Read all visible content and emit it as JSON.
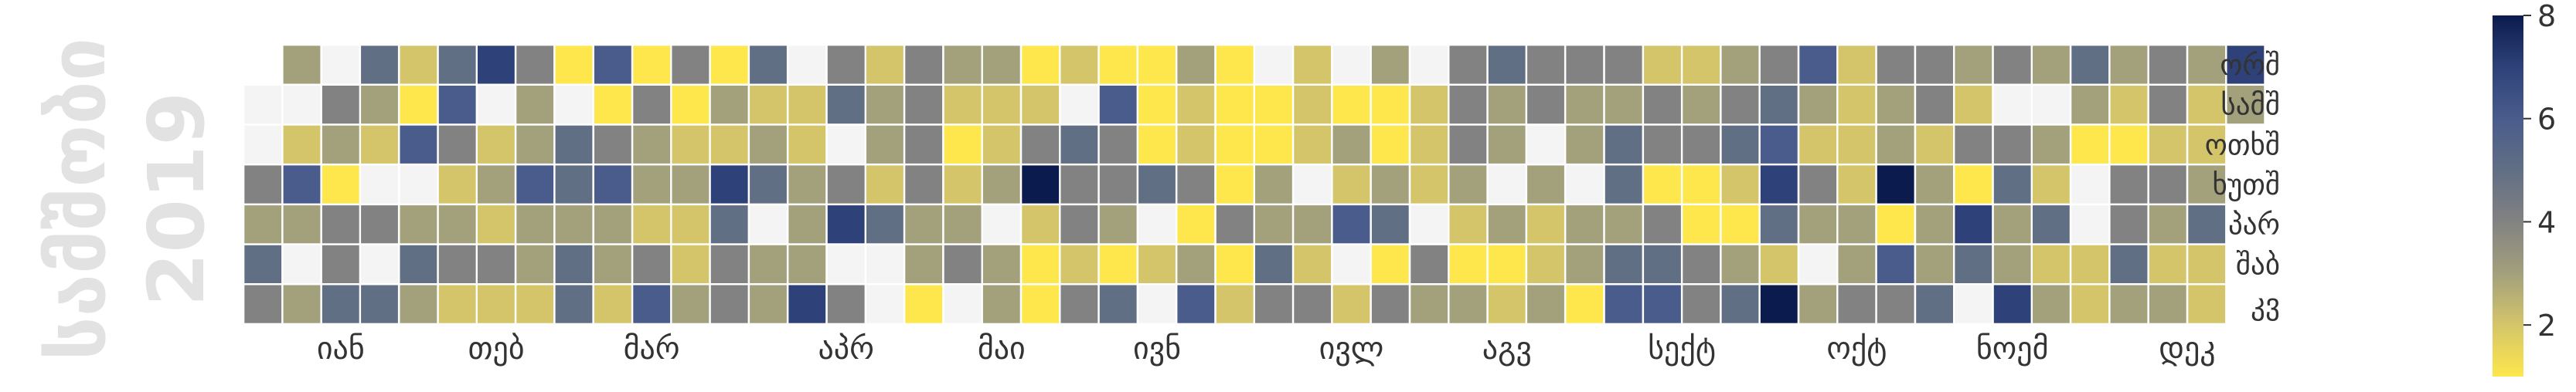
{
  "chart_data": {
    "type": "heatmap",
    "title": "",
    "side_label": "სამშობი",
    "year": "2019",
    "months": [
      "იან",
      "თებ",
      "მარ",
      "აპრ",
      "მაი",
      "ივნ",
      "ივლ",
      "აგვ",
      "სექტ",
      "ოქტ",
      "ნოემ",
      "დეკ"
    ],
    "weekdays": [
      "ორშ",
      "სამშ",
      "ოთხშ",
      "ხუთშ",
      "პარ",
      "შაბ",
      "კვ"
    ],
    "colorbar": {
      "min": 1,
      "max": 8,
      "ticks": [
        2,
        4,
        6,
        8
      ]
    },
    "colormap": [
      "#fde74c",
      "#d4c56a",
      "#a3a07c",
      "#828282",
      "#616f84",
      "#4a5c8c",
      "#2e4279",
      "#0c1b4d"
    ],
    "missing_color": "#f4f4f4",
    "grid_start_weekday": 1,
    "values": [
      null,
      3,
      4,
      3,
      5,
      4,
      3,
      5,
      2,
      6,
      3,
      3,
      3,
      2,
      4,
      3,
      1,
      4,
      4,
      5,
      5,
      3,
      2,
      4,
      4,
      3,
      5,
      2,
      1,
      6,
      4,
      3,
      5,
      3,
      5,
      6,
      4,
      2,
      3,
      4,
      2,
      7,
      4,
      2,
      3,
      2,
      4,
      2,
      4,
      3,
      3,
      6,
      3,
      3,
      2,
      1,
      2,
      5,
      5,
      3,
      5,
      5,
      6,
      1,
      4,
      6,
      3,
      3,
      2,
      1,
      4,
      3,
      3,
      2,
      4,
      6,
      4,
      1,
      2,
      3,
      2,
      2,
      3,
      1,
      3,
      2,
      7,
      5,
      4,
      4,
      5,
      2,
      3,
      5,
      7,
      3,
      3,
      1,
      2,
      2,
      3,
      3,
      3,
      7,
      4,
      5,
      4,
      4,
      7,
      4,
      4,
      2,
      3,
      3,
      2,
      5,
      2,
      5,
      4,
      4,
      4,
      4,
      3,
      3,
      1,
      3,
      2,
      1,
      2,
      3,
      4,
      3,
      3,
      2,
      2,
      3,
      1,
      3,
      3,
      1,
      2,
      4,
      8,
      2,
      1,
      1,
      2,
      1,
      5,
      4,
      4,
      2,
      4,
      1,
      6,
      4,
      4,
      3,
      1,
      5,
      1,
      1,
      1,
      5,
      3,
      2,
      3,
      3,
      2,
      2,
      4,
      1,
      3,
      6,
      1,
      1,
      1,
      1,
      4,
      1,
      2,
      3,
      1,
      1,
      3,
      3,
      5,
      4,
      2,
      2,
      2,
      3,
      3,
      2,
      4,
      4,
      1,
      3,
      2,
      6,
      2,
      2,
      3,
      1,
      1,
      3,
      5,
      1,
      4,
      2,
      2,
      2,
      2,
      2,
      4,
      3,
      4,
      4,
      4,
      3,
      2,
      1,
      3,
      5,
      3,
      3,
      3,
      3,
      1,
      2,
      4,
      4,
      3,
      3,
      2,
      2,
      3,
      4,
      3,
      3,
      6,
      3,
      3,
      1,
      4,
      3,
      5,
      5,
      3,
      5,
      6,
      2,
      4,
      4,
      1,
      4,
      5,
      6,
      2,
      3,
      4,
      1,
      1,
      4,
      4,
      3,
      4,
      5,
      2,
      1,
      3,
      5,
      4,
      5,
      6,
      7,
      5,
      2,
      8,
      6,
      3,
      2,
      4,
      3,
      4,
      3,
      2,
      2,
      2,
      2,
      3,
      3,
      4,
      4,
      3,
      3,
      8,
      1,
      6,
      4,
      4,
      4,
      2,
      3,
      3,
      3,
      5,
      3,
      2,
      4,
      1,
      7,
      5,
      6,
      4,
      3,
      4,
      5,
      3,
      3,
      7,
      3,
      3,
      3,
      2,
      5,
      2,
      3,
      5,
      3,
      1,
      2,
      4,
      2,
      2,
      3,
      2,
      1,
      4,
      4,
      5,
      3,
      4,
      4,
      2,
      4,
      3,
      2,
      3,
      3,
      2,
      2,
      3,
      5,
      2,
      2,
      7,
      3
    ],
    "missing": [
      0,
      1,
      7,
      11,
      13,
      23,
      25,
      30,
      42,
      56,
      94,
      97,
      106,
      109,
      116,
      117,
      131,
      136,
      147,
      164,
      166,
      181,
      191,
      195,
      200,
      209,
      213,
      226,
      232,
      240,
      284,
      313,
      315,
      322,
      331,
      332,
      363,
      369
    ]
  }
}
